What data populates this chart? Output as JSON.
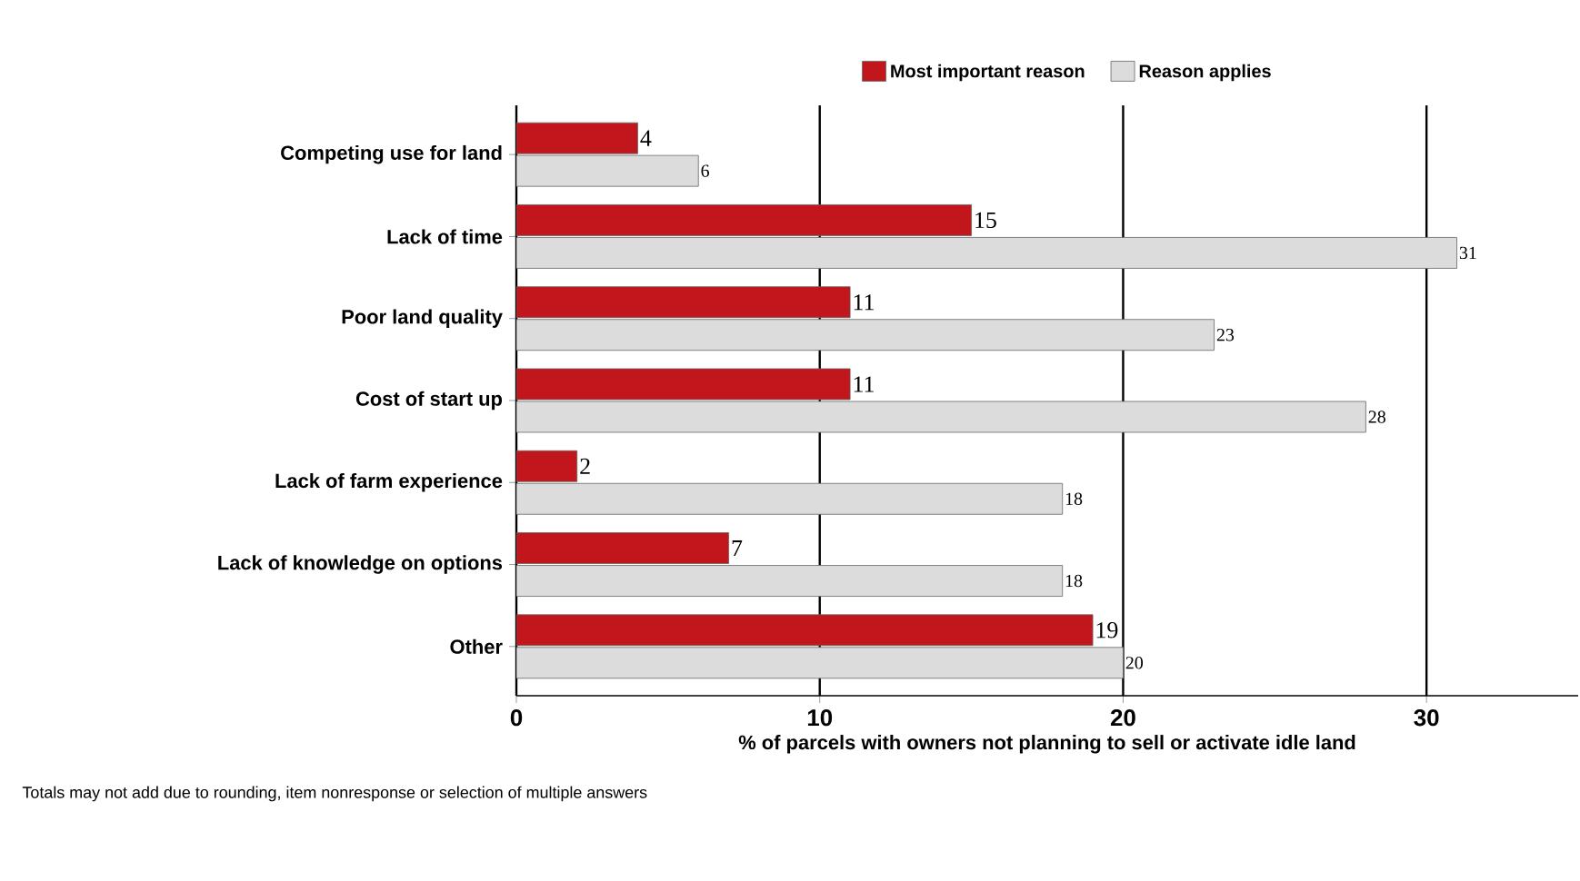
{
  "chart_data": {
    "type": "bar",
    "orientation": "horizontal",
    "categories": [
      "Competing use for land",
      "Lack of time",
      "Poor land quality",
      "Cost of start up",
      "Lack of farm experience",
      "Lack of knowledge on options",
      "Other"
    ],
    "series": [
      {
        "name": "Most important reason",
        "color": "#c0161c",
        "values": [
          4,
          15,
          11,
          11,
          2,
          7,
          19
        ]
      },
      {
        "name": "Reason applies",
        "color": "#dcdcdc",
        "values": [
          6,
          31,
          23,
          28,
          18,
          18,
          20
        ]
      }
    ],
    "xlim": [
      0,
      35
    ],
    "xticks": [
      0,
      10,
      20,
      30
    ],
    "xlabel": "% of parcels with owners not planning to sell or activate idle land",
    "annotations": [
      "Totals may not add due to rounding, item nonresponse or selection of multiple answers"
    ],
    "grid": "x",
    "legend": "top",
    "data_labels": true
  }
}
